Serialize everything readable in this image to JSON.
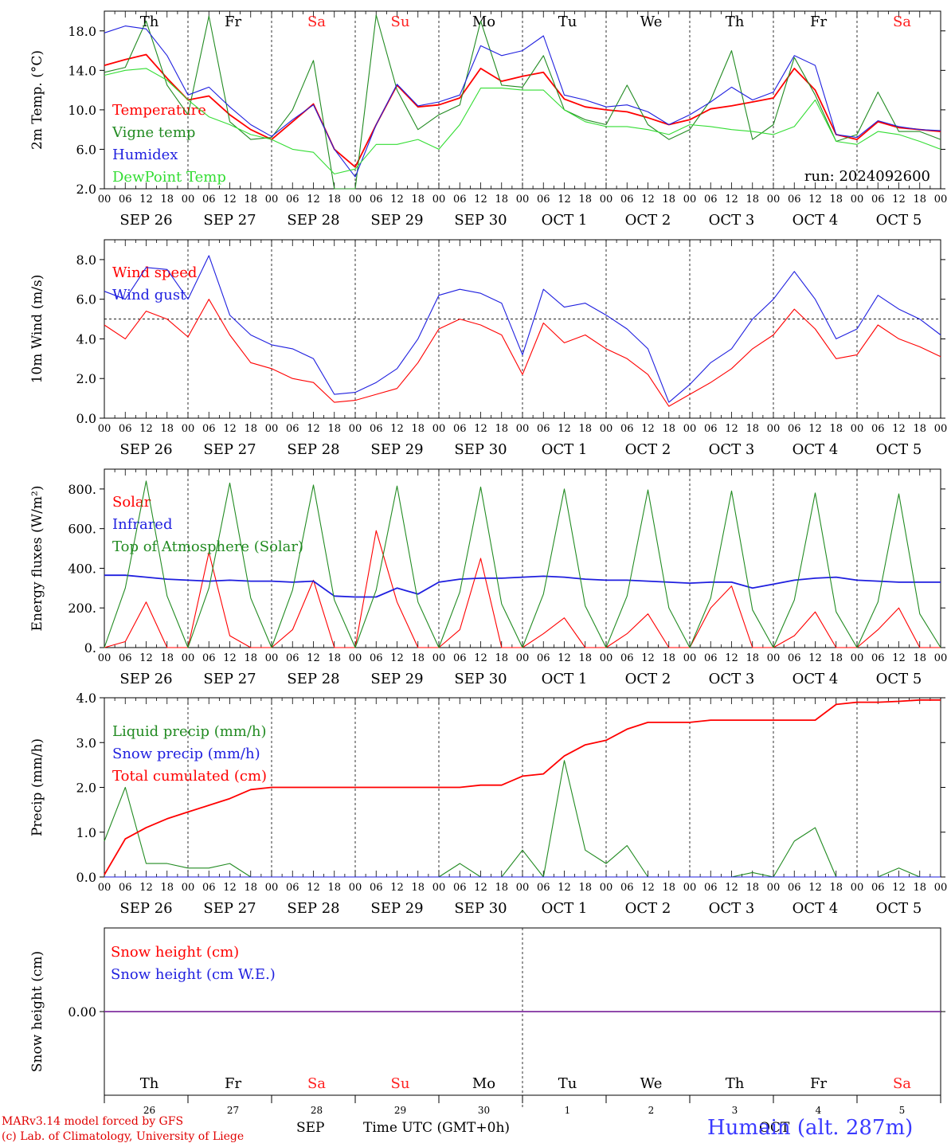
{
  "run_label": "run: 2024092600",
  "footer": {
    "model_line1": "MARv3.14 model forced by GFS",
    "model_line2": "(c) Lab. of Climatology, University of Liege",
    "month_label1": "SEP",
    "month_label2": "OCT",
    "axis_caption": "Time UTC (GMT+0h)",
    "station": "Humain (alt. 287m)"
  },
  "colors": {
    "red": "#ff0000",
    "green": "#228b22",
    "blue": "#1f1fdf",
    "lightgreen": "#33dd33",
    "weekend": "#ff2020",
    "purple": "#8030a0"
  },
  "days": {
    "weekday": [
      "Th",
      "Fr",
      "Sa",
      "Su",
      "Mo",
      "Tu",
      "We",
      "Th",
      "Fr",
      "Sa"
    ],
    "weekend_flags": [
      false,
      false,
      true,
      true,
      false,
      false,
      false,
      false,
      false,
      true
    ],
    "date_labels": [
      "SEP 26",
      "SEP 27",
      "SEP 28",
      "SEP 29",
      "SEP 30",
      "OCT  1",
      "OCT  2",
      "OCT  3",
      "OCT  4",
      "OCT  5"
    ],
    "day_numbers": [
      "26",
      "27",
      "28",
      "29",
      "30",
      "1",
      "2",
      "3",
      "4",
      "5"
    ],
    "hour_ticks": [
      "00",
      "06",
      "12",
      "18"
    ],
    "final_hour": "00"
  },
  "chart_data": [
    {
      "type": "line",
      "ylabel": "2m Temp. (°C)",
      "ylim": [
        2,
        20
      ],
      "yticks": [
        "2.0",
        "6.0",
        "10.0",
        "14.0",
        "18.0"
      ],
      "grid": "vertical dashed at day boundaries",
      "legend_position": "left",
      "x_hours": [
        0,
        6,
        12,
        18,
        24,
        30,
        36,
        42,
        48,
        54,
        60,
        66,
        72,
        78,
        84,
        90,
        96,
        102,
        108,
        114,
        120,
        126,
        132,
        138,
        144,
        150,
        156,
        162,
        168,
        174,
        180,
        186,
        192,
        198,
        204,
        210,
        216,
        222,
        228,
        234,
        240
      ],
      "series": [
        {
          "name": "Temperature",
          "color": "#ff0000",
          "values": [
            14.5,
            15.1,
            15.6,
            13.2,
            11.0,
            11.4,
            9.5,
            8.0,
            7.0,
            8.8,
            10.6,
            6.0,
            4.2,
            8.5,
            12.5,
            10.3,
            10.5,
            11.2,
            14.2,
            12.9,
            13.4,
            13.8,
            11.1,
            10.3,
            10.0,
            9.8,
            9.2,
            8.5,
            9.0,
            10.1,
            10.4,
            10.8,
            11.2,
            14.2,
            12.0,
            7.5,
            7.0,
            8.8,
            8.2,
            8.0,
            7.8
          ]
        },
        {
          "name": "Vigne temp",
          "color": "#228b22",
          "values": [
            13.8,
            14.3,
            19.0,
            12.5,
            9.5,
            19.5,
            8.8,
            7.0,
            7.2,
            10.0,
            15.0,
            2.0,
            2.0,
            19.6,
            12.0,
            8.0,
            9.5,
            10.5,
            19.0,
            12.5,
            12.3,
            15.5,
            10.0,
            9.0,
            8.5,
            12.5,
            8.5,
            7.0,
            8.0,
            11.0,
            16.0,
            7.0,
            8.5,
            15.3,
            11.5,
            6.8,
            7.5,
            11.8,
            7.8,
            7.8,
            7.0
          ]
        },
        {
          "name": "Humidex",
          "color": "#1f1fdf",
          "values": [
            17.8,
            18.5,
            18.2,
            15.5,
            11.5,
            12.3,
            10.3,
            8.5,
            7.3,
            9.0,
            10.5,
            6.0,
            3.2,
            8.5,
            12.6,
            10.4,
            10.8,
            11.5,
            16.5,
            15.5,
            16.0,
            17.5,
            11.5,
            11.0,
            10.3,
            10.5,
            9.8,
            8.5,
            9.5,
            10.8,
            12.3,
            11.0,
            11.8,
            15.5,
            14.5,
            7.5,
            7.2,
            8.9,
            8.3,
            8.0,
            7.9
          ]
        },
        {
          "name": "DewPoint Temp",
          "color": "#33dd33",
          "values": [
            13.5,
            14.0,
            14.2,
            13.0,
            11.0,
            9.3,
            8.5,
            7.5,
            7.0,
            6.0,
            5.7,
            3.5,
            4.0,
            6.5,
            6.5,
            7.0,
            6.0,
            8.5,
            12.2,
            12.2,
            12.0,
            12.0,
            10.0,
            8.8,
            8.3,
            8.3,
            8.0,
            7.5,
            8.5,
            8.3,
            8.0,
            7.8,
            7.5,
            8.3,
            11.0,
            6.8,
            6.5,
            7.8,
            7.5,
            6.8,
            6.0
          ]
        }
      ]
    },
    {
      "type": "line",
      "ylabel": "10m Wind (m/s)",
      "ylim": [
        0,
        9
      ],
      "yticks": [
        "0.0",
        "2.0",
        "4.0",
        "6.0",
        "8.0"
      ],
      "reference_line": 5,
      "grid": "vertical dashed at day boundaries",
      "legend_position": "left",
      "x_hours": [
        0,
        6,
        12,
        18,
        24,
        30,
        36,
        42,
        48,
        54,
        60,
        66,
        72,
        78,
        84,
        90,
        96,
        102,
        108,
        114,
        120,
        126,
        132,
        138,
        144,
        150,
        156,
        162,
        168,
        174,
        180,
        186,
        192,
        198,
        204,
        210,
        216,
        222,
        228,
        234,
        240
      ],
      "series": [
        {
          "name": "Wind speed",
          "color": "#ff0000",
          "values": [
            4.7,
            4.0,
            5.4,
            5.0,
            4.1,
            6.0,
            4.2,
            2.8,
            2.5,
            2.0,
            1.8,
            0.8,
            0.9,
            1.2,
            1.5,
            2.8,
            4.5,
            5.0,
            4.7,
            4.2,
            2.2,
            4.8,
            3.8,
            4.2,
            3.5,
            3.0,
            2.2,
            0.6,
            1.2,
            1.8,
            2.5,
            3.5,
            4.2,
            5.5,
            4.5,
            3.0,
            3.2,
            4.7,
            4.0,
            3.6,
            3.1
          ]
        },
        {
          "name": "Wind gust",
          "color": "#1f1fdf",
          "values": [
            6.4,
            6.0,
            7.6,
            7.5,
            6.0,
            8.2,
            5.2,
            4.2,
            3.7,
            3.5,
            3.0,
            1.2,
            1.3,
            1.8,
            2.5,
            4.0,
            6.2,
            6.5,
            6.3,
            5.8,
            3.2,
            6.5,
            5.6,
            5.8,
            5.2,
            4.5,
            3.5,
            0.8,
            1.7,
            2.8,
            3.5,
            5.0,
            6.0,
            7.4,
            6.0,
            4.0,
            4.5,
            6.2,
            5.5,
            5.0,
            4.2
          ]
        }
      ]
    },
    {
      "type": "line",
      "ylabel": "Energy fluxes (W/m²)",
      "ylim": [
        0,
        900
      ],
      "yticks": [
        "0.",
        "200.",
        "400.",
        "600.",
        "800."
      ],
      "grid": "vertical dashed at day boundaries",
      "legend_position": "left",
      "x_hours": [
        0,
        6,
        12,
        18,
        24,
        30,
        36,
        42,
        48,
        54,
        60,
        66,
        72,
        78,
        84,
        90,
        96,
        102,
        108,
        114,
        120,
        126,
        132,
        138,
        144,
        150,
        156,
        162,
        168,
        174,
        180,
        186,
        192,
        198,
        204,
        210,
        216,
        222,
        228,
        234,
        240
      ],
      "series": [
        {
          "name": "Solar",
          "color": "#ff0000",
          "values": [
            0,
            30,
            230,
            0,
            0,
            480,
            60,
            0,
            0,
            90,
            340,
            0,
            0,
            590,
            230,
            0,
            0,
            90,
            450,
            0,
            0,
            70,
            150,
            0,
            0,
            70,
            170,
            0,
            0,
            200,
            310,
            0,
            0,
            60,
            180,
            0,
            0,
            90,
            200,
            0,
            0
          ]
        },
        {
          "name": "Infrared",
          "color": "#1f1fdf",
          "values": [
            365,
            365,
            355,
            345,
            340,
            335,
            340,
            335,
            335,
            330,
            335,
            260,
            255,
            255,
            300,
            270,
            330,
            345,
            350,
            350,
            355,
            360,
            355,
            345,
            340,
            340,
            335,
            330,
            325,
            330,
            330,
            300,
            320,
            340,
            350,
            355,
            340,
            335,
            330,
            330,
            330
          ]
        },
        {
          "name": "Top of Atmosphere (Solar)",
          "color": "#228b22",
          "values": [
            0,
            300,
            840,
            260,
            0,
            300,
            830,
            250,
            0,
            290,
            820,
            240,
            0,
            290,
            815,
            230,
            0,
            280,
            810,
            220,
            0,
            270,
            800,
            210,
            0,
            260,
            795,
            200,
            0,
            250,
            790,
            190,
            0,
            240,
            780,
            180,
            0,
            230,
            775,
            170,
            0
          ]
        }
      ]
    },
    {
      "type": "line",
      "ylabel": "Precip (mm/h)",
      "ylim": [
        0,
        4
      ],
      "yticks": [
        "0.0",
        "1.0",
        "2.0",
        "3.0",
        "4.0"
      ],
      "grid": "vertical dashed at day boundaries",
      "legend_position": "left",
      "x_hours": [
        0,
        6,
        12,
        18,
        24,
        30,
        36,
        42,
        48,
        54,
        60,
        66,
        72,
        78,
        84,
        90,
        96,
        102,
        108,
        114,
        120,
        126,
        132,
        138,
        144,
        150,
        156,
        162,
        168,
        174,
        180,
        186,
        192,
        198,
        204,
        210,
        216,
        222,
        228,
        234,
        240
      ],
      "series": [
        {
          "name": "Liquid precip (mm/h)",
          "color": "#228b22",
          "values": [
            0.8,
            2.0,
            0.3,
            0.3,
            0.2,
            0.2,
            0.3,
            0.0,
            0.0,
            0.0,
            0.0,
            0.0,
            0.0,
            0.0,
            0.0,
            0.0,
            0.0,
            0.3,
            0.0,
            0.0,
            0.6,
            0.0,
            2.6,
            0.6,
            0.3,
            0.7,
            0.0,
            0.0,
            0.0,
            0.0,
            0.0,
            0.1,
            0.0,
            0.8,
            1.1,
            0.0,
            0.0,
            0.0,
            0.2,
            0.0,
            0.0
          ]
        },
        {
          "name": "Snow precip (mm/h)",
          "color": "#1f1fdf",
          "values": [
            0,
            0,
            0,
            0,
            0,
            0,
            0,
            0,
            0,
            0,
            0,
            0,
            0,
            0,
            0,
            0,
            0,
            0,
            0,
            0,
            0,
            0,
            0,
            0,
            0,
            0,
            0,
            0,
            0,
            0,
            0,
            0,
            0,
            0,
            0,
            0,
            0,
            0,
            0,
            0,
            0
          ]
        },
        {
          "name": "Total cumulated (cm)",
          "color": "#ff0000",
          "values": [
            0.05,
            0.85,
            1.1,
            1.3,
            1.45,
            1.6,
            1.75,
            1.95,
            2.0,
            2.0,
            2.0,
            2.0,
            2.0,
            2.0,
            2.0,
            2.0,
            2.0,
            2.0,
            2.05,
            2.05,
            2.25,
            2.3,
            2.7,
            2.95,
            3.05,
            3.3,
            3.45,
            3.45,
            3.45,
            3.5,
            3.5,
            3.5,
            3.5,
            3.5,
            3.5,
            3.85,
            3.9,
            3.9,
            3.92,
            3.95,
            3.95
          ]
        }
      ]
    },
    {
      "type": "line",
      "ylabel": "Snow height (cm)",
      "ylim": [
        -1,
        1
      ],
      "yticks": [
        "0.00"
      ],
      "grid": "vertical dashed at middle",
      "legend_position": "left",
      "x_hours": [
        0,
        240
      ],
      "series": [
        {
          "name": "Snow height (cm)",
          "color": "#ff0000",
          "values": [
            0,
            0
          ]
        },
        {
          "name": "Snow height (cm W.E.)",
          "color": "#1f1fdf",
          "values": [
            0,
            0
          ]
        }
      ]
    }
  ]
}
